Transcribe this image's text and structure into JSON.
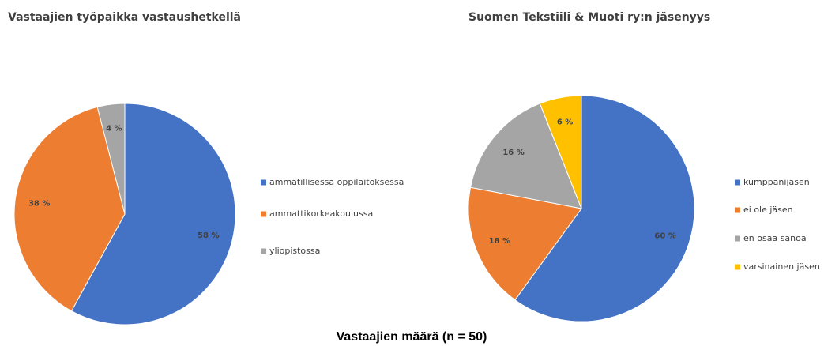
{
  "chart_data": [
    {
      "type": "pie",
      "title": "Vastaajien työpaikka vastaushetkellä",
      "categories": [
        "ammatillisessa oppilaitoksessa",
        "ammattikorkeakoulussa",
        "yliopistossa"
      ],
      "values": [
        58,
        38,
        4
      ],
      "value_labels": [
        "58 %",
        "38 %",
        "4 %"
      ],
      "colors": [
        "#4472c4",
        "#ed7d31",
        "#a5a5a5"
      ],
      "legend": "right"
    },
    {
      "type": "pie",
      "title": "Suomen Tekstiili & Muoti ry:n jäsenyys",
      "categories": [
        "kumppanijäsen",
        "ei ole jäsen",
        "en osaa sanoa",
        "varsinainen jäsen"
      ],
      "values": [
        60,
        18,
        16,
        6
      ],
      "value_labels": [
        "60 %",
        "18 %",
        "16 %",
        "6 %"
      ],
      "colors": [
        "#4472c4",
        "#ed7d31",
        "#a5a5a5",
        "#ffc000"
      ],
      "legend": "right"
    }
  ],
  "footer": "Vastaajien määrä (n = 50)"
}
